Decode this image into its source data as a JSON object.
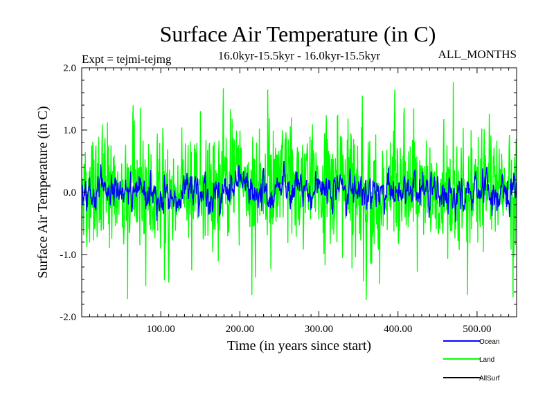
{
  "chart_data": {
    "type": "line",
    "title": "Surface Air Temperature (in C)",
    "expt_label": "Expt = tejmi-tejmg",
    "subtitle": "16.0kyr-15.5kyr - 16.0kyr-15.5kyr",
    "months_label": "ALL_MONTHS",
    "xlabel": "Time (in years since start)",
    "ylabel": "Surface Air Temperature (in C)",
    "xlim": [
      0,
      550
    ],
    "ylim": [
      -2.0,
      2.0
    ],
    "x_ticks": [
      {
        "value": 100,
        "label": "100.00"
      },
      {
        "value": 200,
        "label": "200.00"
      },
      {
        "value": 300,
        "label": "300.00"
      },
      {
        "value": 400,
        "label": "400.00"
      },
      {
        "value": 500,
        "label": "500.00"
      }
    ],
    "y_ticks": [
      {
        "value": 2.0,
        "label": "2.0"
      },
      {
        "value": 1.0,
        "label": "1.0"
      },
      {
        "value": 0.0,
        "label": "0.0"
      },
      {
        "value": -1.0,
        "label": "-1.0"
      },
      {
        "value": -2.0,
        "label": "-2.0"
      }
    ],
    "legend_position": "bottom-right",
    "series": [
      {
        "name": "Land",
        "color": "#00ff00",
        "approx_std": 0.5,
        "min": -1.73,
        "max": 1.77,
        "note": "high-frequency noisy series around 0"
      },
      {
        "name": "Ocean",
        "color": "#0000ff",
        "approx_std": 0.18,
        "min": -0.55,
        "max": 0.8,
        "note": "lower-amplitude noisy series around 0"
      },
      {
        "name": "AllSurf",
        "color": "#000000",
        "approx_std": 0.0,
        "note": "legend only; not visibly plotted"
      }
    ],
    "legend": [
      {
        "name": "Ocean",
        "color": "#0000ff"
      },
      {
        "name": "Land",
        "color": "#00ff00"
      },
      {
        "name": "AllSurf",
        "color": "#000000"
      }
    ]
  }
}
